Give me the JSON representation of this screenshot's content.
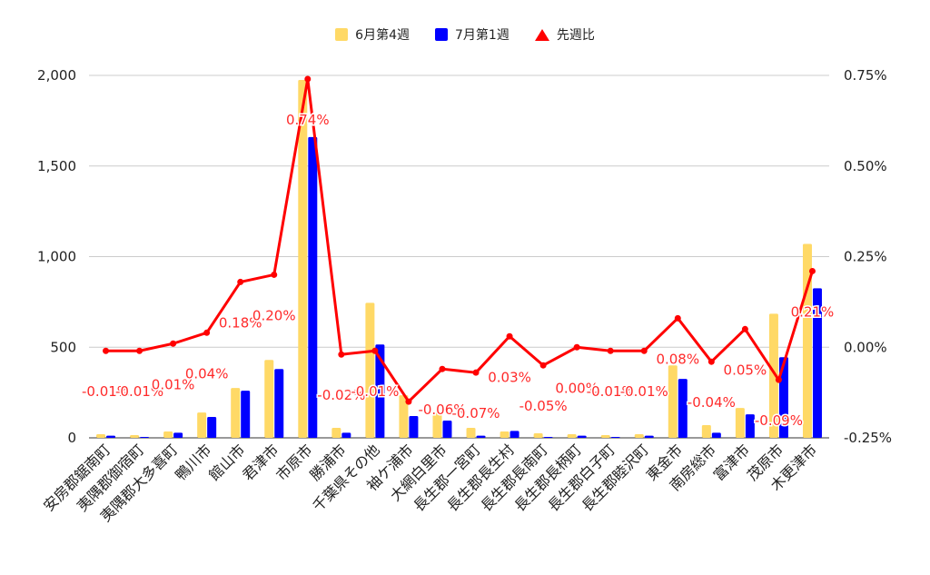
{
  "chart_data": {
    "type": "bar",
    "categories": [
      "安房郡鋸南町",
      "夷隅郡御宿町",
      "夷隅郡大多喜町",
      "鴨川市",
      "館山市",
      "君津市",
      "市原市",
      "勝浦市",
      "千葉県その他",
      "袖ケ浦市",
      "大網白里市",
      "長生郡一宮町",
      "長生郡長生村",
      "長生郡長南町",
      "長生郡長柄町",
      "長生郡白子町",
      "長生郡睦沢町",
      "東金市",
      "南房総市",
      "富津市",
      "茂原市",
      "木更津市"
    ],
    "series": [
      {
        "name": "6月第4週",
        "type": "bar",
        "axis": "left",
        "color": "#ffd966",
        "values": [
          20,
          15,
          35,
          140,
          275,
          430,
          1975,
          55,
          745,
          235,
          140,
          55,
          35,
          25,
          20,
          15,
          20,
          400,
          70,
          165,
          685,
          1070
        ]
      },
      {
        "name": "7月第1週",
        "type": "bar",
        "axis": "left",
        "color": "#0000ff",
        "values": [
          12,
          5,
          28,
          115,
          260,
          380,
          1660,
          28,
          515,
          120,
          95,
          12,
          38,
          5,
          12,
          5,
          12,
          325,
          28,
          130,
          445,
          825
        ]
      },
      {
        "name": "先週比",
        "type": "line",
        "axis": "right",
        "color": "#ff0000",
        "values": [
          -0.01,
          -0.01,
          0.01,
          0.04,
          0.18,
          0.2,
          0.74,
          -0.02,
          -0.01,
          -0.15,
          -0.06,
          -0.07,
          0.03,
          -0.05,
          0.0,
          -0.01,
          -0.01,
          0.08,
          -0.04,
          0.05,
          -0.09,
          0.21
        ]
      }
    ],
    "point_labels": [
      "-0.01%",
      "-0.01%",
      "0.01%",
      "0.04%",
      "0.18%",
      "0.20%",
      "0.74%",
      "-0.02%",
      "-0.01%",
      "",
      "-0.06%",
      "-0.07%",
      "0.03%",
      "-0.05%",
      "0.00%",
      "-0.01%",
      "-0.01%",
      "0.08%",
      "-0.04%",
      "0.05%",
      "-0.09%",
      "0.21%"
    ],
    "y_left": {
      "min": 0,
      "max": 2000,
      "ticks": [
        0,
        500,
        1000,
        1500,
        2000
      ],
      "tick_labels": [
        "0",
        "500",
        "1,000",
        "1,500",
        "2,000"
      ]
    },
    "y_right": {
      "min": -0.25,
      "max": 0.75,
      "ticks": [
        -0.25,
        0,
        0.25,
        0.5,
        0.75
      ],
      "tick_labels": [
        "-0.25%",
        "0.00%",
        "0.25%",
        "0.50%",
        "0.75%"
      ]
    },
    "grid": true,
    "legend_position": "top-center",
    "title": "",
    "xlabel": "",
    "ylabel": ""
  }
}
